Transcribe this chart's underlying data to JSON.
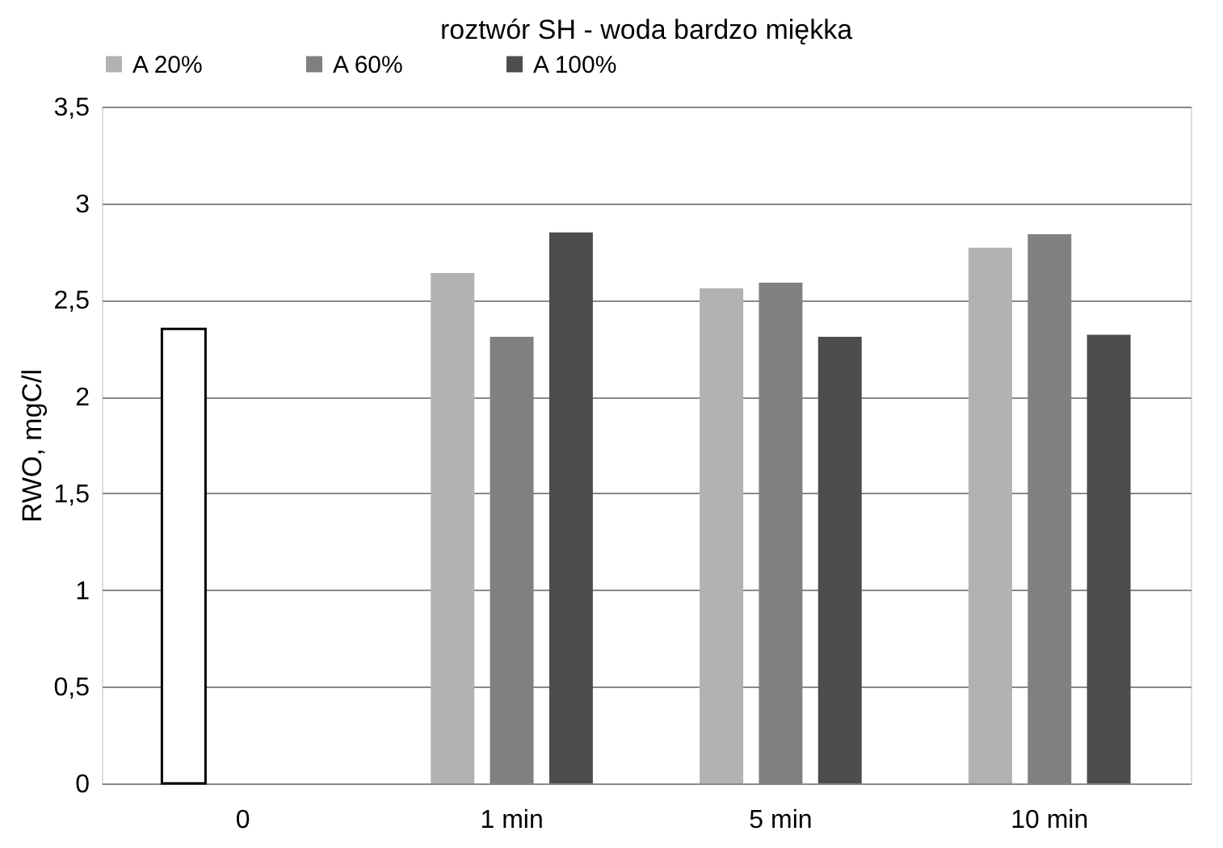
{
  "chart_data": {
    "type": "bar",
    "title": "roztwór SH - woda bardzo miękka",
    "ylabel": "RWO, mgC/l",
    "categories": [
      "0",
      "1 min",
      "5 min",
      "10 min"
    ],
    "series": [
      {
        "name": "A 20%",
        "color": "#b2b2b2",
        "colors": [
          "#ffffff",
          "#b2b2b2",
          "#b2b2b2",
          "#b2b2b2"
        ],
        "values": [
          2.35,
          2.64,
          2.56,
          2.77
        ]
      },
      {
        "name": "A 60%",
        "color": "#808080",
        "values": [
          null,
          2.31,
          2.59,
          2.84
        ]
      },
      {
        "name": "A 100%",
        "color": "#4d4d4d",
        "values": [
          null,
          2.85,
          2.31,
          2.32
        ]
      }
    ],
    "ylim": [
      0,
      3.5
    ],
    "yticks": [
      0,
      {
        "value": 0.5,
        "label": "0,5"
      },
      1,
      {
        "value": 1.5,
        "label": "1,5"
      },
      2,
      {
        "value": 2.5,
        "label": "2,5"
      },
      3,
      {
        "value": 3.5,
        "label": "3,5"
      }
    ],
    "grid": "y",
    "legend": "top"
  }
}
